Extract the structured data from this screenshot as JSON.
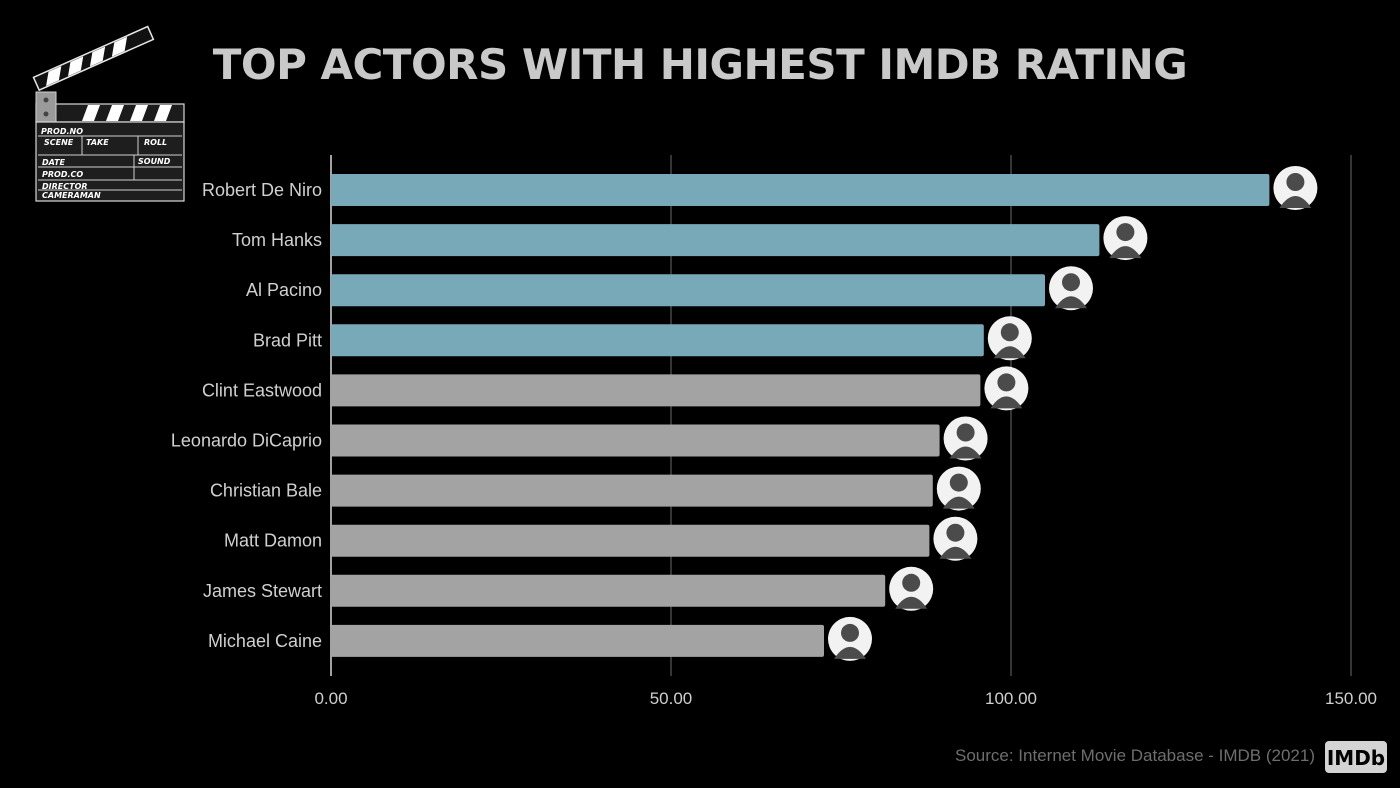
{
  "title": "TOP ACTORS WITH HIGHEST IMDB RATING",
  "source": "Source: Internet Movie Database - IMDB (2021)",
  "logo": {
    "imdb": "IMDb",
    "clapboard": [
      "PROD.NO",
      "SCENE",
      "TAKE",
      "ROLL",
      "DATE",
      "SOUND",
      "PROD.CO",
      "DIRECTOR",
      "CAMERAMAN"
    ]
  },
  "colors": {
    "highlight": "#78a9b8",
    "default": "#a3a3a3",
    "grid": "#6a6a6a",
    "background": "#000000"
  },
  "chart_data": {
    "type": "bar",
    "orientation": "horizontal",
    "title": "TOP ACTORS WITH HIGHEST IMDB RATING",
    "categories": [
      "Robert De Niro",
      "Tom Hanks",
      "Al Pacino",
      "Brad Pitt",
      "Clint Eastwood",
      "Leonardo DiCaprio",
      "Christian Bale",
      "Matt Damon",
      "James Stewart",
      "Michael Caine"
    ],
    "values": [
      138,
      113,
      105,
      96,
      95.5,
      89.5,
      88.5,
      88,
      81.5,
      72.5
    ],
    "highlighted": [
      true,
      true,
      true,
      true,
      false,
      false,
      false,
      false,
      false,
      false
    ],
    "xlim": [
      0,
      150
    ],
    "xticks": [
      0,
      50,
      100,
      150
    ],
    "xtick_labels": [
      "0.00",
      "50.00",
      "100.00",
      "150.00"
    ],
    "grid": true
  }
}
